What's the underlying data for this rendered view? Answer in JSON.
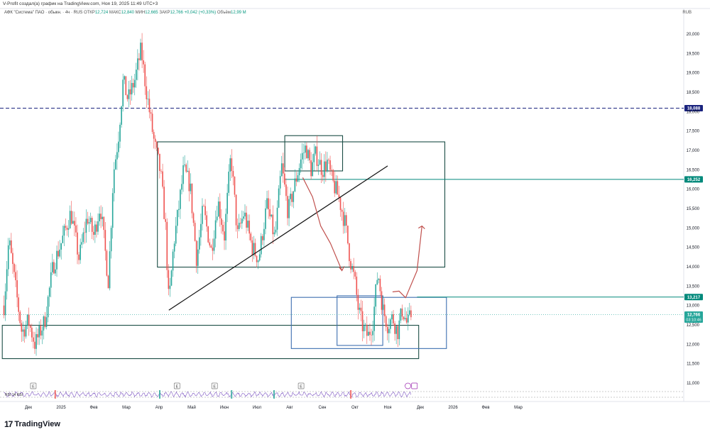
{
  "header": {
    "credit": "V-Profit создал(а) график на TradingView.com, Ноя 19, 2025 11:49 UTC+3",
    "symbol": "АФК \"Система\" ПАО · обыкн. · 4ч · RUS",
    "open_label": "ОТКР",
    "open": "12,724",
    "high_label": "МАКС",
    "high": "12,840",
    "low_label": "МИН",
    "low": "12,665",
    "close_label": "ЗАКР",
    "close": "12,766",
    "change": "+0,042 (+0,33%)",
    "volume_label": "Объём",
    "volume": "12,99 M",
    "currency": "RUB"
  },
  "footer": {
    "brand": "TradingView"
  },
  "chart_data": {
    "type": "candlestick",
    "y_axis": {
      "min": 11.0,
      "max": 20.0,
      "ticks": [
        "20,000",
        "19,500",
        "19,000",
        "18,500",
        "18,000",
        "17,500",
        "17,000",
        "16,500",
        "16,000",
        "15,500",
        "15,000",
        "14,500",
        "14,000",
        "13,500",
        "13,000",
        "12,500",
        "12,000",
        "11,500",
        "11,000"
      ]
    },
    "x_axis": {
      "ticks": [
        {
          "label": "Дек",
          "x": 0.0
        },
        {
          "label": "2025",
          "x": 1.0
        },
        {
          "label": "Фев",
          "x": 2.0
        },
        {
          "label": "Мар",
          "x": 3.0
        },
        {
          "label": "Апр",
          "x": 4.0
        },
        {
          "label": "Май",
          "x": 5.0
        },
        {
          "label": "Июн",
          "x": 6.0
        },
        {
          "label": "Июл",
          "x": 7.0
        },
        {
          "label": "Авг",
          "x": 8.0
        },
        {
          "label": "Сен",
          "x": 9.0
        },
        {
          "label": "Окт",
          "x": 10.0
        },
        {
          "label": "Ноя",
          "x": 11.0
        },
        {
          "label": "Дек",
          "x": 12.0
        },
        {
          "label": "2026",
          "x": 13.0
        },
        {
          "label": "Фев",
          "x": 14.0
        },
        {
          "label": "Мар",
          "x": 15.0
        }
      ]
    },
    "price_path": [
      [
        -0.75,
        13.0
      ],
      [
        -0.6,
        14.7
      ],
      [
        -0.4,
        13.5
      ],
      [
        -0.2,
        12.3
      ],
      [
        0.0,
        12.6
      ],
      [
        0.2,
        12.0
      ],
      [
        0.5,
        12.6
      ],
      [
        0.75,
        14.0
      ],
      [
        1.0,
        14.6
      ],
      [
        1.3,
        15.4
      ],
      [
        1.55,
        14.2
      ],
      [
        1.8,
        15.3
      ],
      [
        2.0,
        14.8
      ],
      [
        2.2,
        15.6
      ],
      [
        2.45,
        13.6
      ],
      [
        2.6,
        16.4
      ],
      [
        2.75,
        17.3
      ],
      [
        2.9,
        18.8
      ],
      [
        3.05,
        18.3
      ],
      [
        3.25,
        18.8
      ],
      [
        3.45,
        19.6
      ],
      [
        3.6,
        18.6
      ],
      [
        3.85,
        17.2
      ],
      [
        4.05,
        16.4
      ],
      [
        4.2,
        15.0
      ],
      [
        4.3,
        13.0
      ],
      [
        4.45,
        14.6
      ],
      [
        4.6,
        15.5
      ],
      [
        4.75,
        16.5
      ],
      [
        4.95,
        16.1
      ],
      [
        5.15,
        14.2
      ],
      [
        5.35,
        15.5
      ],
      [
        5.6,
        14.4
      ],
      [
        5.8,
        15.7
      ],
      [
        6.0,
        14.8
      ],
      [
        6.2,
        16.9
      ],
      [
        6.4,
        14.8
      ],
      [
        6.6,
        15.4
      ],
      [
        6.85,
        14.5
      ],
      [
        7.05,
        14.2
      ],
      [
        7.3,
        15.6
      ],
      [
        7.55,
        14.7
      ],
      [
        7.75,
        16.6
      ],
      [
        7.95,
        15.4
      ],
      [
        8.15,
        16.1
      ],
      [
        8.35,
        16.8
      ],
      [
        8.5,
        17.1
      ],
      [
        8.65,
        16.5
      ],
      [
        8.8,
        16.9
      ],
      [
        9.0,
        16.5
      ],
      [
        9.15,
        16.7
      ],
      [
        9.3,
        16.2
      ],
      [
        9.5,
        15.8
      ],
      [
        9.7,
        15.1
      ],
      [
        9.85,
        14.2
      ],
      [
        10.0,
        13.6
      ],
      [
        10.1,
        12.9
      ],
      [
        10.25,
        12.4
      ],
      [
        10.4,
        12.2
      ],
      [
        10.55,
        12.6
      ],
      [
        10.7,
        13.9
      ],
      [
        10.85,
        12.9
      ],
      [
        11.0,
        12.5
      ],
      [
        11.15,
        12.7
      ],
      [
        11.3,
        12.3
      ],
      [
        11.45,
        12.9
      ],
      [
        11.6,
        12.5
      ],
      [
        11.72,
        12.766
      ]
    ],
    "levels": [
      {
        "value": 18.088,
        "label": "18,088",
        "style": "dashed",
        "color": "#1a237e"
      },
      {
        "value": 16.252,
        "label": "16,252",
        "style": "solid",
        "color": "#00897b"
      },
      {
        "value": 13.217,
        "label": "13,217",
        "style": "solid",
        "color": "#00897b"
      },
      {
        "value": 12.766,
        "label": "12,766",
        "sublabel": "03:10:46",
        "style": "dotted",
        "color": "#26a69a"
      }
    ],
    "rectangles": [
      {
        "x0": 3.95,
        "x1": 12.75,
        "y0": 13.99,
        "y1": 17.22,
        "color": "#1b4d45"
      },
      {
        "x0": 7.85,
        "x1": 9.62,
        "y0": 16.47,
        "y1": 17.38,
        "color": "#1b4d45"
      },
      {
        "x0": -0.8,
        "x1": 11.95,
        "y0": 11.63,
        "y1": 12.49,
        "color": "#1b4d45"
      },
      {
        "x0": 8.05,
        "x1": 12.8,
        "y0": 11.89,
        "y1": 13.21,
        "color": "#3d6fb0"
      },
      {
        "x0": 9.45,
        "x1": 10.85,
        "y0": 11.97,
        "y1": 13.25,
        "color": "#3d6fb0"
      }
    ],
    "trendline": {
      "x0": 4.3,
      "y0": 12.88,
      "x1": 11.0,
      "y1": 16.6,
      "color": "#111111"
    },
    "projection": [
      [
        11.15,
        13.35
      ],
      [
        11.35,
        13.37
      ],
      [
        11.55,
        13.2
      ],
      [
        11.9,
        13.9
      ],
      [
        12.05,
        15.05
      ]
    ],
    "arrow_down": [
      [
        8.4,
        16.3
      ],
      [
        8.7,
        15.8
      ],
      [
        8.95,
        15.05
      ],
      [
        9.25,
        14.6
      ],
      [
        9.6,
        13.9
      ]
    ],
    "earnings_markers": [
      0.15,
      4.55,
      5.7,
      8.35
    ],
    "indicator": {
      "label": "RSI 14 RSI"
    }
  }
}
